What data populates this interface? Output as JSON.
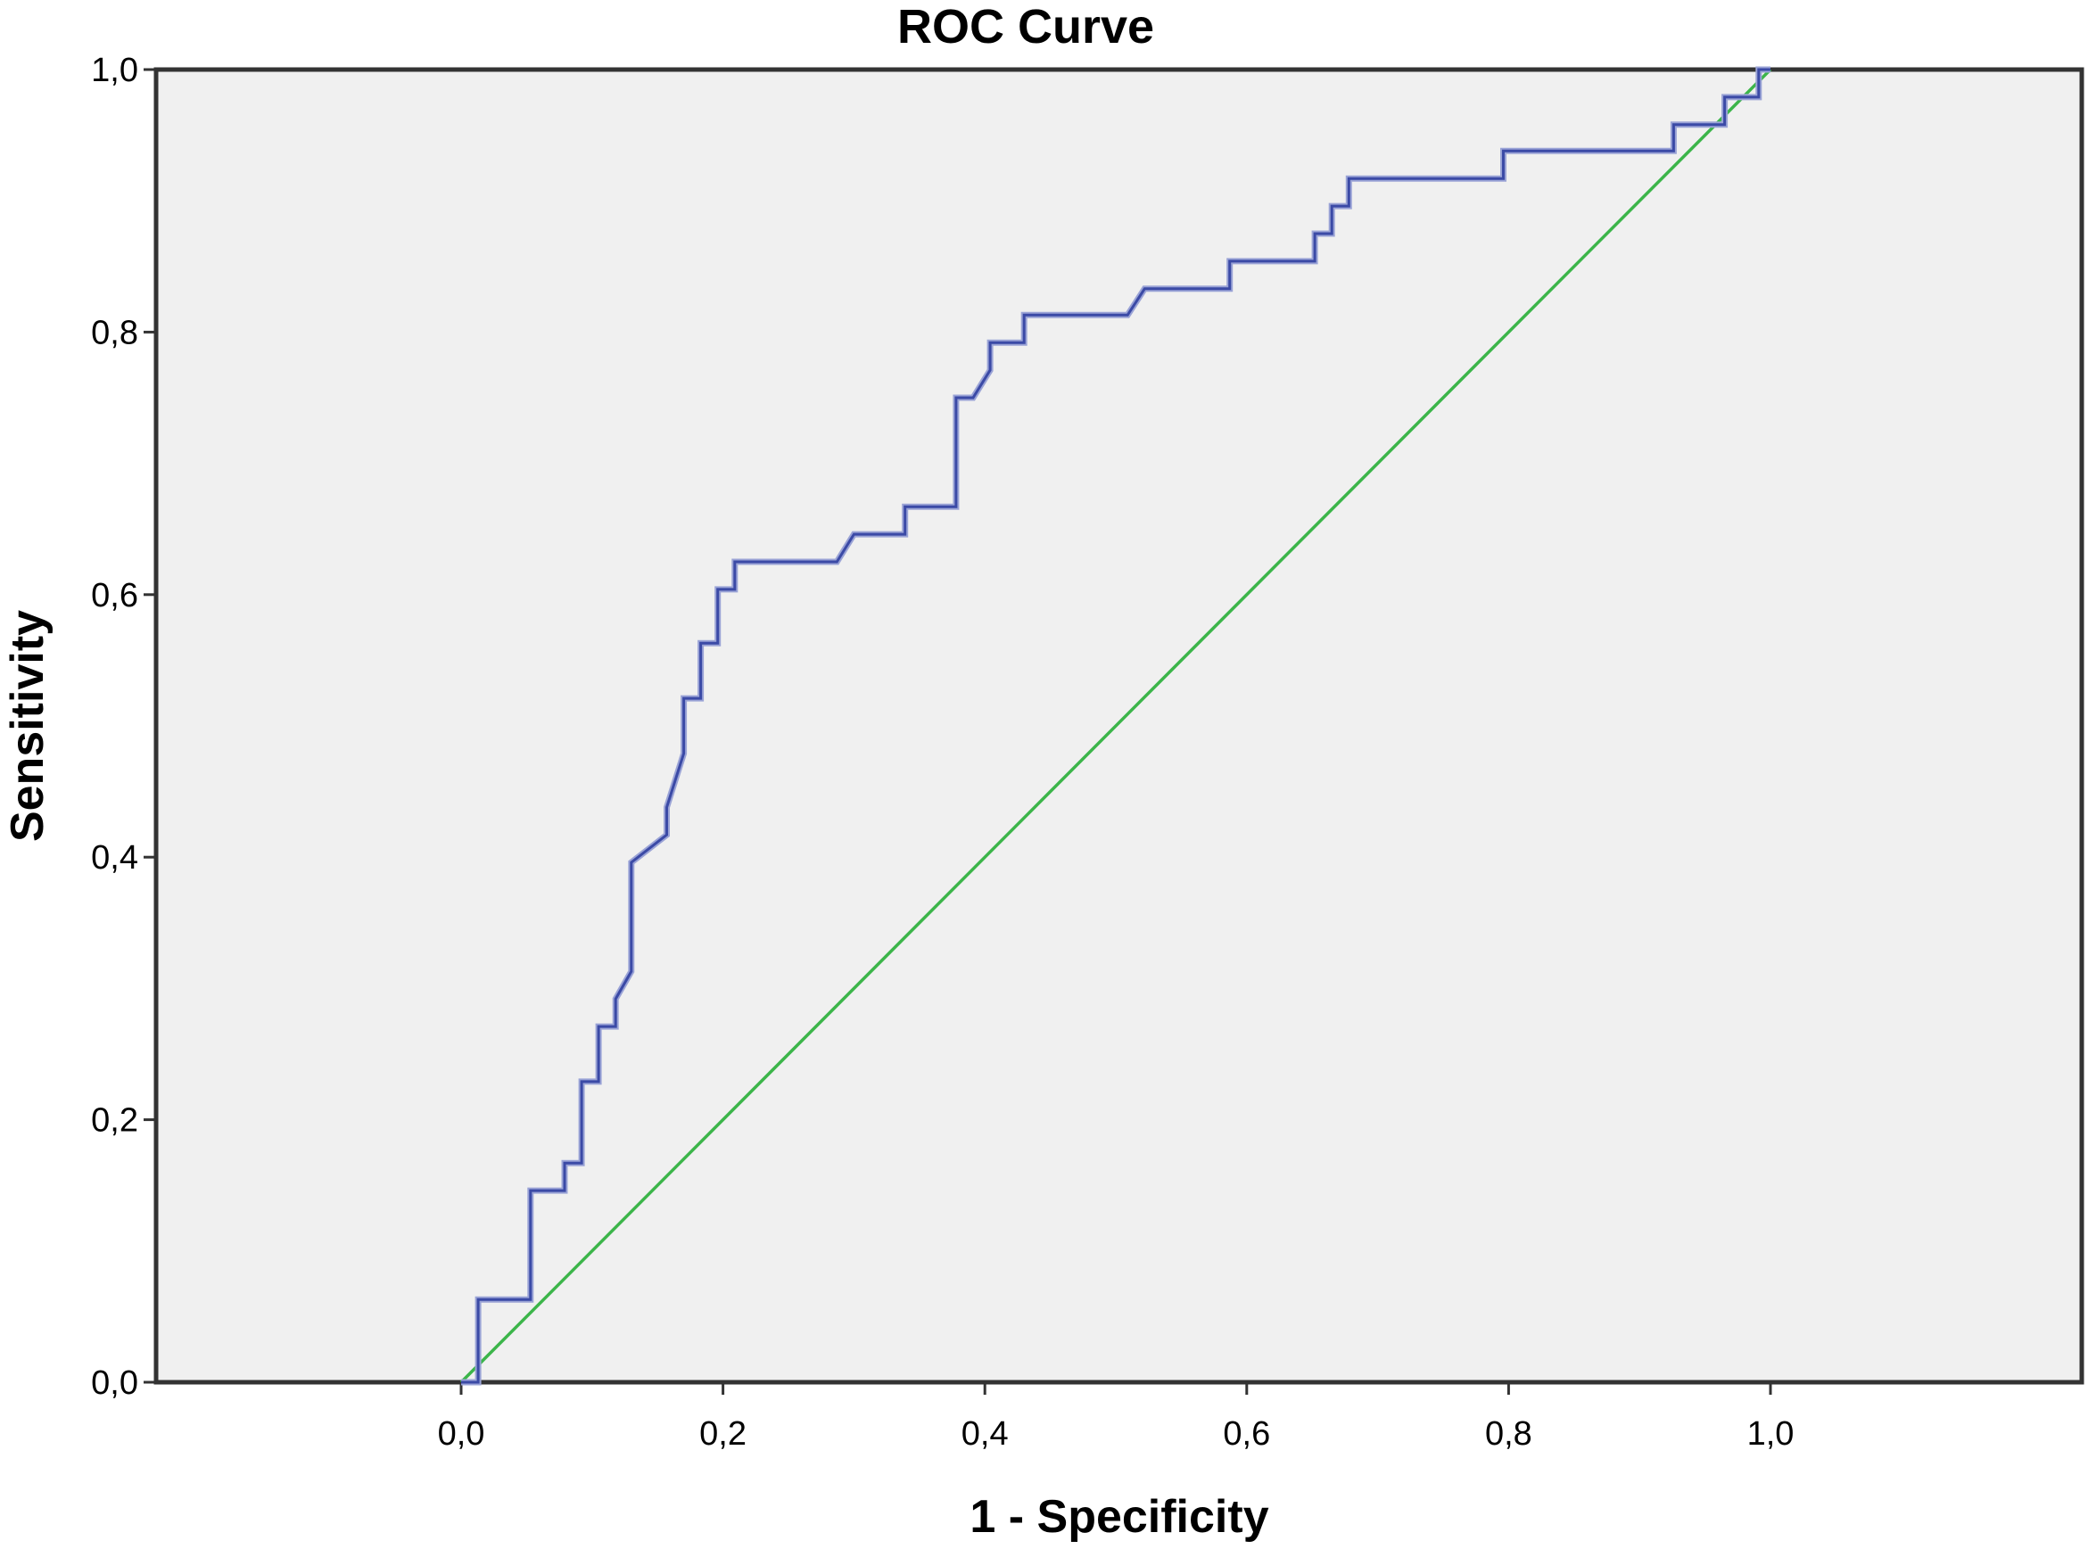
{
  "chart_data": {
    "type": "line",
    "title": "ROC Curve",
    "xlabel": "1 - Specificity",
    "ylabel": "Sensitivity",
    "xlim": [
      0.0,
      1.0
    ],
    "ylim": [
      0.0,
      1.0
    ],
    "x_ticks": [
      0.0,
      0.2,
      0.4,
      0.6,
      0.8,
      1.0
    ],
    "y_ticks": [
      0.0,
      0.2,
      0.4,
      0.6,
      0.8,
      1.0
    ],
    "x_tick_labels": [
      "0,0",
      "0,2",
      "0,4",
      "0,6",
      "0,8",
      "1,0"
    ],
    "y_tick_labels": [
      "0,0",
      "0,2",
      "0,4",
      "0,6",
      "0,8",
      "1,0"
    ],
    "grid": false,
    "colors": {
      "plot_background": "#f0f0f0",
      "roc_curve": "#3b4aa6",
      "reference_line": "#3cb54a",
      "frame": "#333333"
    },
    "series": [
      {
        "key": "roc",
        "color": "#3b4aa6",
        "points": [
          [
            0.0,
            0.0
          ],
          [
            0.013,
            0.0
          ],
          [
            0.013,
            0.063
          ],
          [
            0.053,
            0.063
          ],
          [
            0.053,
            0.146
          ],
          [
            0.079,
            0.146
          ],
          [
            0.079,
            0.167
          ],
          [
            0.092,
            0.167
          ],
          [
            0.092,
            0.229
          ],
          [
            0.105,
            0.229
          ],
          [
            0.105,
            0.271
          ],
          [
            0.118,
            0.271
          ],
          [
            0.118,
            0.292
          ],
          [
            0.13,
            0.313
          ],
          [
            0.13,
            0.396
          ],
          [
            0.157,
            0.417
          ],
          [
            0.157,
            0.438
          ],
          [
            0.17,
            0.479
          ],
          [
            0.17,
            0.521
          ],
          [
            0.183,
            0.521
          ],
          [
            0.183,
            0.563
          ],
          [
            0.196,
            0.563
          ],
          [
            0.196,
            0.604
          ],
          [
            0.209,
            0.604
          ],
          [
            0.209,
            0.625
          ],
          [
            0.287,
            0.625
          ],
          [
            0.3,
            0.646
          ],
          [
            0.339,
            0.646
          ],
          [
            0.339,
            0.667
          ],
          [
            0.378,
            0.667
          ],
          [
            0.378,
            0.75
          ],
          [
            0.391,
            0.75
          ],
          [
            0.404,
            0.771
          ],
          [
            0.404,
            0.792
          ],
          [
            0.43,
            0.792
          ],
          [
            0.43,
            0.813
          ],
          [
            0.509,
            0.813
          ],
          [
            0.522,
            0.833
          ],
          [
            0.587,
            0.833
          ],
          [
            0.587,
            0.854
          ],
          [
            0.652,
            0.854
          ],
          [
            0.652,
            0.875
          ],
          [
            0.665,
            0.875
          ],
          [
            0.665,
            0.896
          ],
          [
            0.678,
            0.896
          ],
          [
            0.678,
            0.917
          ],
          [
            0.796,
            0.917
          ],
          [
            0.796,
            0.938
          ],
          [
            0.926,
            0.938
          ],
          [
            0.926,
            0.958
          ],
          [
            0.965,
            0.958
          ],
          [
            0.965,
            0.979
          ],
          [
            0.991,
            0.979
          ],
          [
            0.991,
            1.0
          ],
          [
            1.0,
            1.0
          ]
        ]
      },
      {
        "key": "reference",
        "color": "#3cb54a",
        "points": [
          [
            0.0,
            0.0
          ],
          [
            1.0,
            1.0
          ]
        ]
      }
    ]
  }
}
